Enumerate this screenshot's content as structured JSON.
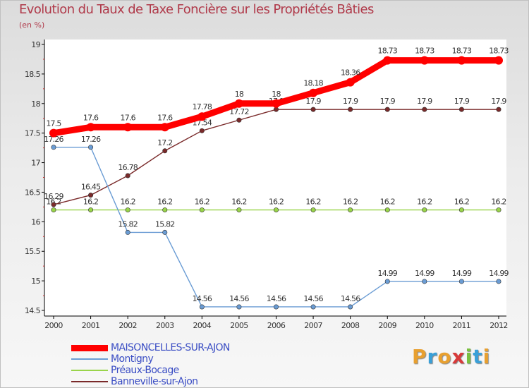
{
  "chart_data": {
    "type": "line",
    "title": "Evolution du Taux de Taxe Foncière sur les Propriétés Bâties",
    "ylabel": "(en %)",
    "xlabel": "",
    "ylim": [
      14.5,
      19
    ],
    "yticks": [
      "14.5",
      "15",
      "15.5",
      "16",
      "16.5",
      "17",
      "17.5",
      "18",
      "18.5",
      "19"
    ],
    "categories": [
      "2000",
      "2001",
      "2002",
      "2003",
      "2004",
      "2005",
      "2006",
      "2007",
      "2008",
      "2009",
      "2010",
      "2011",
      "2012"
    ],
    "grid": false,
    "legend_position": "bottom-left",
    "series": [
      {
        "name": "MAISONCELLES-SUR-AJON",
        "color": "#ff0000",
        "values": [
          17.5,
          17.6,
          17.6,
          17.6,
          17.78,
          18,
          18,
          18.18,
          18.36,
          18.73,
          18.73,
          18.73,
          18.73
        ],
        "labels": [
          "17.5",
          "17.6",
          "17.6",
          "17.6",
          "17.78",
          "18",
          "18",
          "18.18",
          "18.36",
          "18.73",
          "18.73",
          "18.73",
          "18.73"
        ]
      },
      {
        "name": "Montigny",
        "color": "#6a9cd4",
        "values": [
          17.26,
          17.26,
          15.82,
          15.82,
          14.56,
          14.56,
          14.56,
          14.56,
          14.56,
          14.99,
          14.99,
          14.99,
          14.99
        ],
        "labels": [
          "17.26",
          "17.26",
          "15.82",
          "15.82",
          "14.56",
          "14.56",
          "14.56",
          "14.56",
          "14.56",
          "14.99",
          "14.99",
          "14.99",
          "14.99"
        ]
      },
      {
        "name": "Préaux-Bocage",
        "color": "#99d44a",
        "values": [
          16.2,
          16.2,
          16.2,
          16.2,
          16.2,
          16.2,
          16.2,
          16.2,
          16.2,
          16.2,
          16.2,
          16.2,
          16.2
        ],
        "labels": [
          "16.2",
          "16.2",
          "16.2",
          "16.2",
          "16.2",
          "16.2",
          "16.2",
          "16.2",
          "16.2",
          "16.2",
          "16.2",
          "16.2",
          "16.2"
        ]
      },
      {
        "name": "Banneville-sur-Ajon",
        "color": "#7a2a2a",
        "values": [
          16.29,
          16.45,
          16.78,
          17.2,
          17.54,
          17.72,
          17.9,
          17.9,
          17.9,
          17.9,
          17.9,
          17.9,
          17.9
        ],
        "labels": [
          "16.29",
          "16.45",
          "16.78",
          "17.2",
          "17.54",
          "17.72",
          "17.9",
          "17.9",
          "17.9",
          "17.9",
          "17.9",
          "17.9",
          "17.9"
        ]
      }
    ]
  },
  "branding": {
    "logo_text": "Proxiti",
    "logo_colors": [
      "#e8a030",
      "#3aa0d8",
      "#e8a030",
      "#d83a3a",
      "#7ac040",
      "#3aa0d8",
      "#e8a030"
    ]
  }
}
